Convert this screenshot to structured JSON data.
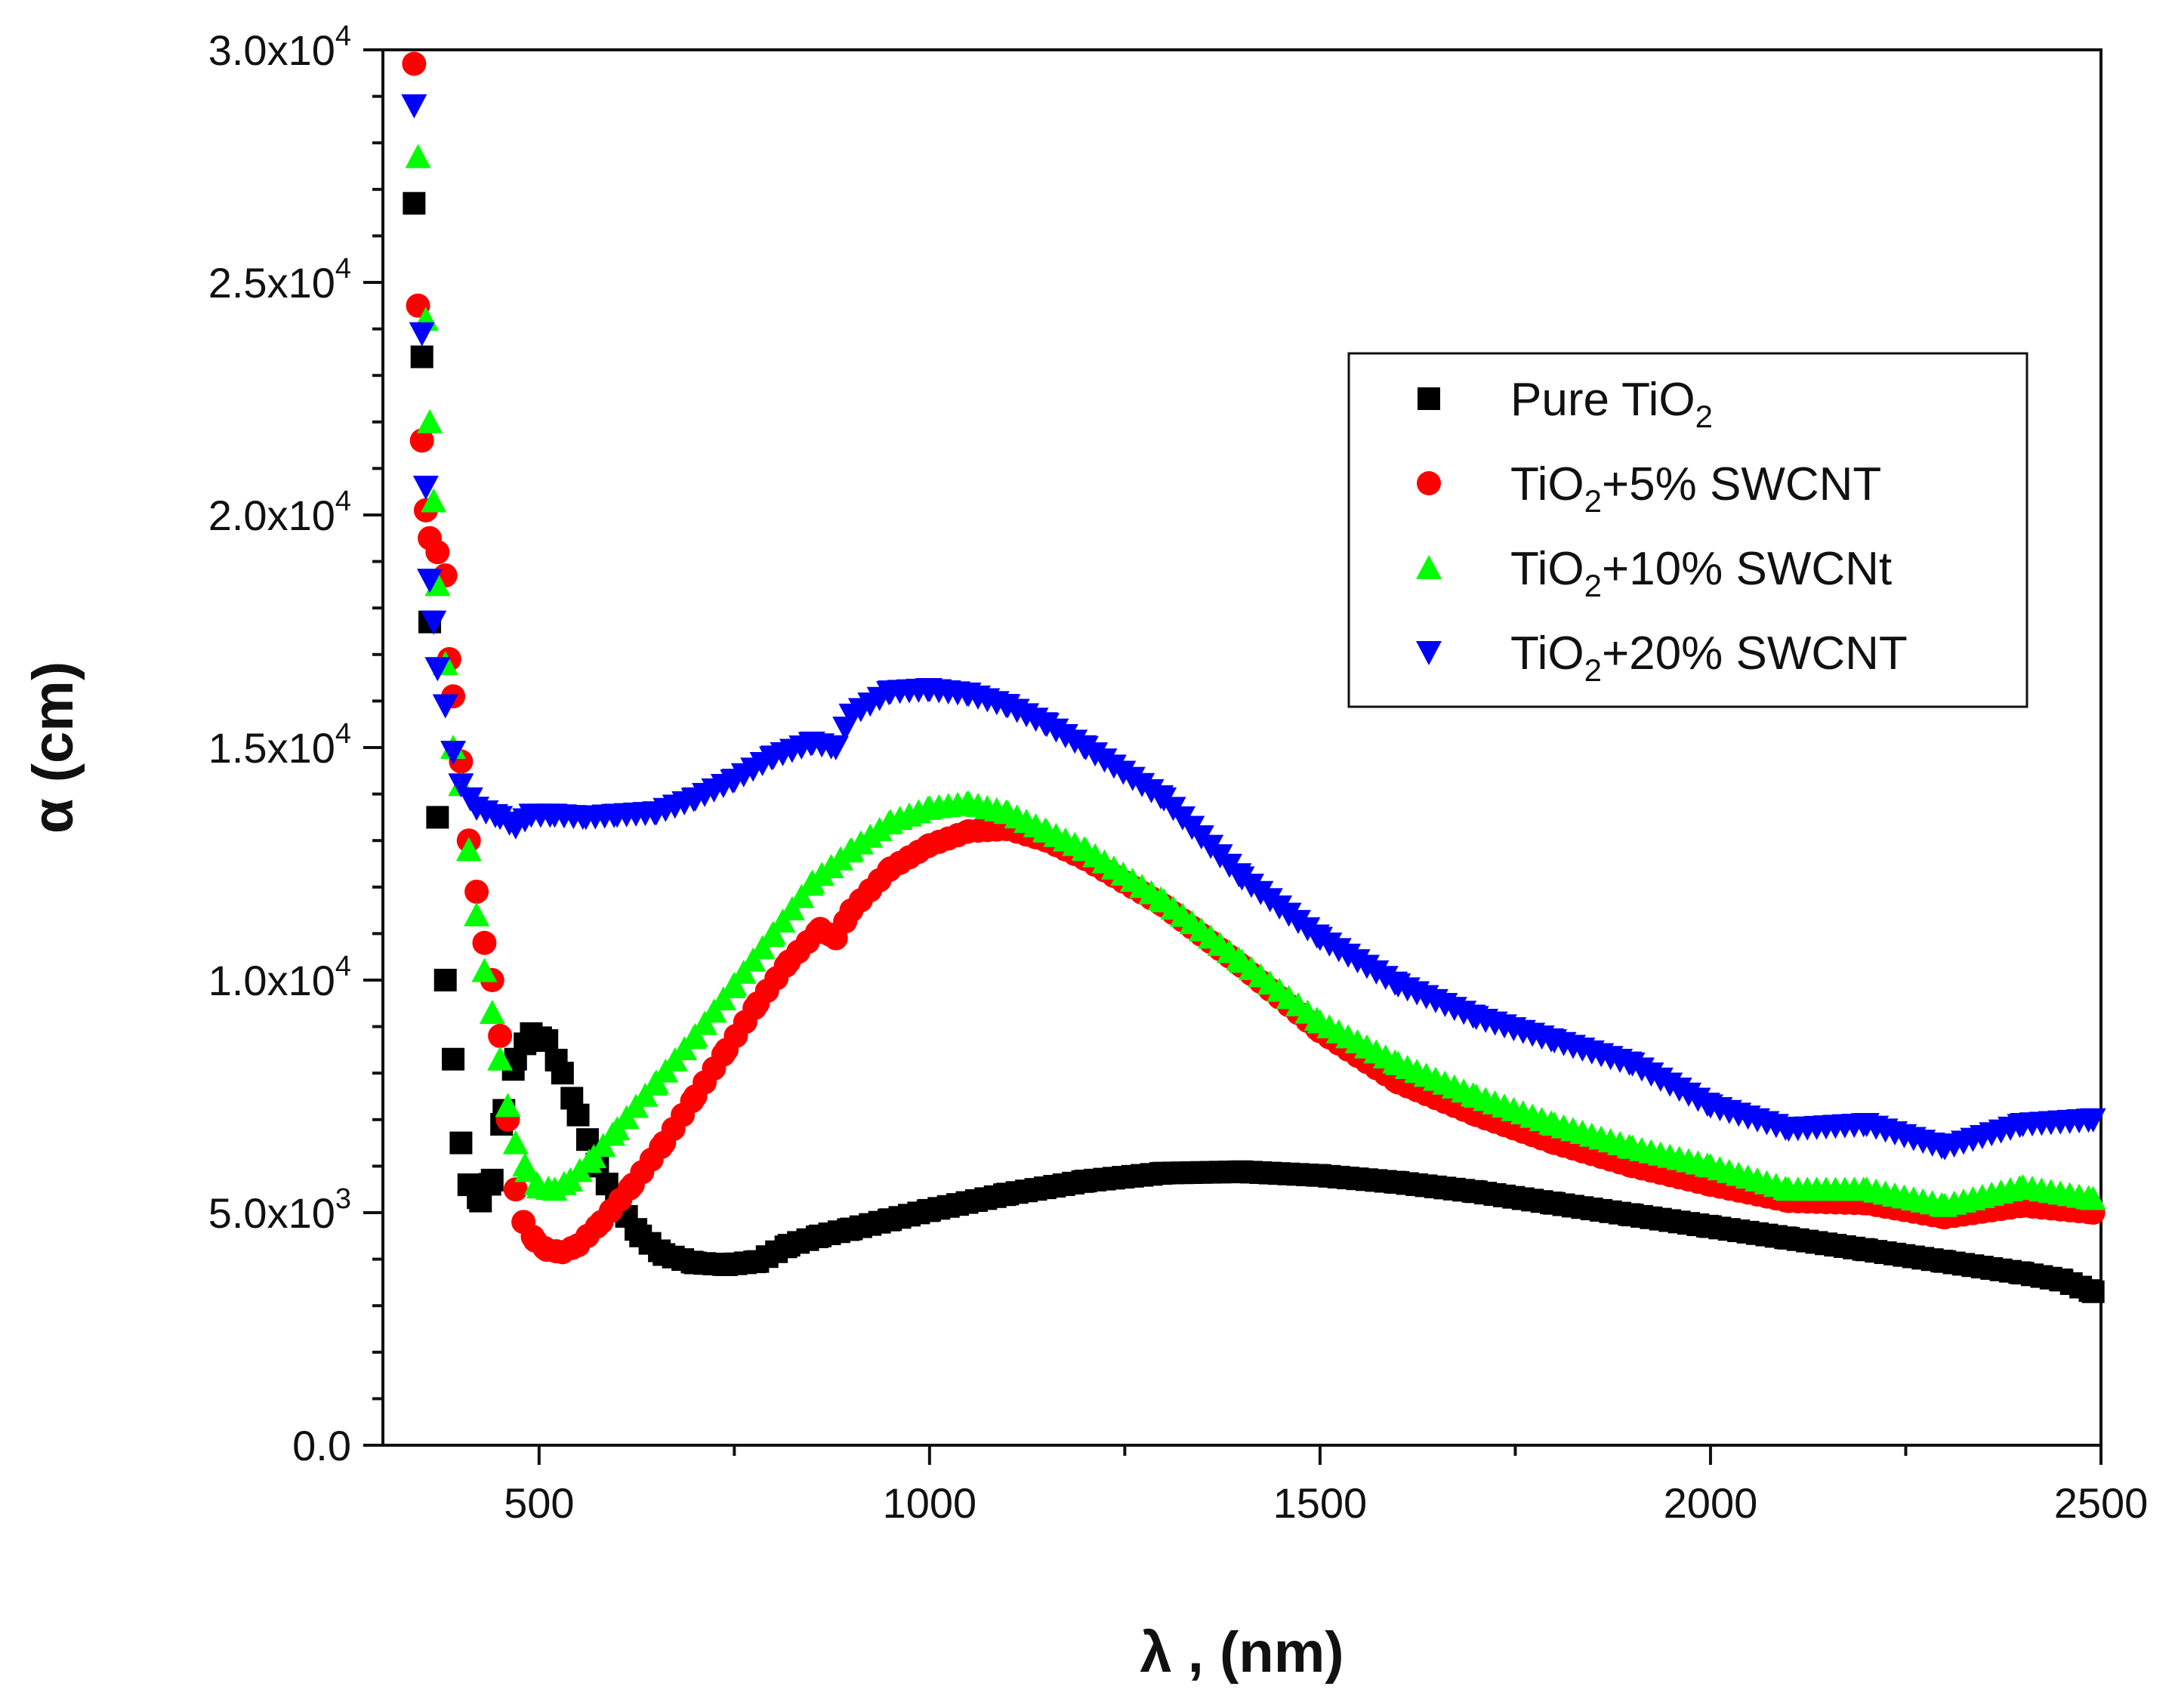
{
  "chart_data": {
    "type": "scatter",
    "title": "",
    "xlabel": "λ  , (nm)",
    "ylabel": "α (cm)",
    "xlim": [
      300,
      2500
    ],
    "ylim": [
      0,
      30000
    ],
    "x_ticks": [
      500,
      1000,
      1500,
      2000,
      2500
    ],
    "x_tick_labels": [
      "500",
      "1000",
      "1500",
      "2000",
      "2500"
    ],
    "y_ticks": [
      0,
      5000,
      10000,
      15000,
      20000,
      25000,
      30000
    ],
    "y_tick_labels": [
      {
        "mantissa": "0.0",
        "exp": ""
      },
      {
        "mantissa": "5.0x10",
        "exp": "3"
      },
      {
        "mantissa": "1.0x10",
        "exp": "4"
      },
      {
        "mantissa": "1.5x10",
        "exp": "4"
      },
      {
        "mantissa": "2.0x10",
        "exp": "4"
      },
      {
        "mantissa": "2.5x10",
        "exp": "4"
      },
      {
        "mantissa": "3.0x10",
        "exp": "4"
      }
    ],
    "legend_position": "top-right",
    "series": [
      {
        "name": "Pure TiO2",
        "legend_label": {
          "pre": "Pure TiO",
          "sub": "2",
          "post": ""
        },
        "marker": "square",
        "color": "#000000",
        "points": [
          [
            340,
            26700
          ],
          [
            350,
            23400
          ],
          [
            360,
            17700
          ],
          [
            370,
            13500
          ],
          [
            380,
            10000
          ],
          [
            390,
            8300
          ],
          [
            400,
            6500
          ],
          [
            410,
            5600
          ],
          [
            425,
            5250
          ],
          [
            440,
            5700
          ],
          [
            455,
            7200
          ],
          [
            470,
            8300
          ],
          [
            490,
            8850
          ],
          [
            510,
            8700
          ],
          [
            530,
            8000
          ],
          [
            550,
            7100
          ],
          [
            575,
            6000
          ],
          [
            600,
            5200
          ],
          [
            630,
            4500
          ],
          [
            660,
            4100
          ],
          [
            700,
            3920
          ],
          [
            740,
            3880
          ],
          [
            780,
            3950
          ],
          [
            820,
            4300
          ],
          [
            860,
            4500
          ],
          [
            900,
            4650
          ],
          [
            950,
            4850
          ],
          [
            1000,
            5050
          ],
          [
            1100,
            5400
          ],
          [
            1200,
            5680
          ],
          [
            1300,
            5850
          ],
          [
            1400,
            5880
          ],
          [
            1500,
            5800
          ],
          [
            1600,
            5650
          ],
          [
            1700,
            5450
          ],
          [
            1800,
            5200
          ],
          [
            1900,
            4950
          ],
          [
            2000,
            4700
          ],
          [
            2100,
            4450
          ],
          [
            2200,
            4200
          ],
          [
            2300,
            3950
          ],
          [
            2400,
            3700
          ],
          [
            2450,
            3550
          ],
          [
            2490,
            3300
          ]
        ]
      },
      {
        "name": "TiO2+5% SWCNT",
        "legend_label": {
          "pre": "TiO",
          "sub": "2",
          "post": "+5% SWCNT"
        },
        "marker": "circle",
        "color": "#ff0000",
        "points": [
          [
            340,
            29700
          ],
          [
            345,
            24500
          ],
          [
            350,
            21600
          ],
          [
            355,
            20100
          ],
          [
            360,
            19500
          ],
          [
            370,
            19200
          ],
          [
            380,
            18700
          ],
          [
            385,
            16900
          ],
          [
            390,
            16100
          ],
          [
            400,
            14700
          ],
          [
            410,
            13000
          ],
          [
            420,
            11900
          ],
          [
            430,
            10800
          ],
          [
            440,
            10000
          ],
          [
            450,
            8800
          ],
          [
            460,
            7000
          ],
          [
            470,
            5500
          ],
          [
            480,
            4800
          ],
          [
            495,
            4400
          ],
          [
            510,
            4200
          ],
          [
            530,
            4150
          ],
          [
            550,
            4300
          ],
          [
            580,
            4800
          ],
          [
            620,
            5600
          ],
          [
            660,
            6500
          ],
          [
            700,
            7500
          ],
          [
            740,
            8500
          ],
          [
            780,
            9500
          ],
          [
            820,
            10400
          ],
          [
            860,
            11100
          ],
          [
            880,
            10900
          ],
          [
            900,
            11500
          ],
          [
            950,
            12400
          ],
          [
            1000,
            12900
          ],
          [
            1050,
            13200
          ],
          [
            1100,
            13250
          ],
          [
            1150,
            13000
          ],
          [
            1200,
            12600
          ],
          [
            1300,
            11600
          ],
          [
            1400,
            10300
          ],
          [
            1500,
            8900
          ],
          [
            1600,
            7800
          ],
          [
            1700,
            7100
          ],
          [
            1800,
            6500
          ],
          [
            1900,
            6000
          ],
          [
            2000,
            5600
          ],
          [
            2100,
            5250
          ],
          [
            2200,
            5200
          ],
          [
            2300,
            4900
          ],
          [
            2400,
            5150
          ],
          [
            2490,
            5000
          ]
        ]
      },
      {
        "name": "TiO2+10% SWCNt",
        "legend_label": {
          "pre": "TiO",
          "sub": "2",
          "post": "+10% SWCNt"
        },
        "marker": "triangle-up",
        "color": "#00ff00",
        "points": [
          [
            345,
            27700
          ],
          [
            355,
            24200
          ],
          [
            360,
            22000
          ],
          [
            365,
            20300
          ],
          [
            370,
            18500
          ],
          [
            380,
            16800
          ],
          [
            390,
            15000
          ],
          [
            400,
            14200
          ],
          [
            410,
            12800
          ],
          [
            420,
            11400
          ],
          [
            430,
            10200
          ],
          [
            440,
            9300
          ],
          [
            450,
            8300
          ],
          [
            460,
            7300
          ],
          [
            470,
            6500
          ],
          [
            485,
            5900
          ],
          [
            500,
            5550
          ],
          [
            520,
            5500
          ],
          [
            540,
            5700
          ],
          [
            570,
            6200
          ],
          [
            600,
            6800
          ],
          [
            650,
            7800
          ],
          [
            700,
            8800
          ],
          [
            750,
            9900
          ],
          [
            800,
            11000
          ],
          [
            850,
            12100
          ],
          [
            900,
            12800
          ],
          [
            950,
            13400
          ],
          [
            1000,
            13700
          ],
          [
            1050,
            13800
          ],
          [
            1100,
            13600
          ],
          [
            1150,
            13200
          ],
          [
            1200,
            12800
          ],
          [
            1300,
            11700
          ],
          [
            1400,
            10400
          ],
          [
            1500,
            9100
          ],
          [
            1600,
            8200
          ],
          [
            1700,
            7500
          ],
          [
            1800,
            6900
          ],
          [
            1900,
            6400
          ],
          [
            2000,
            6000
          ],
          [
            2100,
            5500
          ],
          [
            2200,
            5500
          ],
          [
            2300,
            5150
          ],
          [
            2400,
            5550
          ],
          [
            2490,
            5300
          ]
        ]
      },
      {
        "name": "TiO2+20% SWCNT",
        "legend_label": {
          "pre": "TiO",
          "sub": "2",
          "post": "+20% SWCNT"
        },
        "marker": "triangle-down",
        "color": "#0000ff",
        "points": [
          [
            340,
            28800
          ],
          [
            350,
            23900
          ],
          [
            355,
            20600
          ],
          [
            360,
            18600
          ],
          [
            365,
            17700
          ],
          [
            370,
            16700
          ],
          [
            380,
            15900
          ],
          [
            390,
            14900
          ],
          [
            400,
            14200
          ],
          [
            420,
            13700
          ],
          [
            450,
            13500
          ],
          [
            470,
            13300
          ],
          [
            490,
            13550
          ],
          [
            520,
            13550
          ],
          [
            560,
            13500
          ],
          [
            600,
            13550
          ],
          [
            650,
            13600
          ],
          [
            700,
            13900
          ],
          [
            750,
            14300
          ],
          [
            800,
            14800
          ],
          [
            850,
            15100
          ],
          [
            880,
            15000
          ],
          [
            900,
            15700
          ],
          [
            950,
            16200
          ],
          [
            1000,
            16250
          ],
          [
            1050,
            16150
          ],
          [
            1100,
            15900
          ],
          [
            1150,
            15500
          ],
          [
            1200,
            15000
          ],
          [
            1300,
            13900
          ],
          [
            1400,
            12200
          ],
          [
            1500,
            10900
          ],
          [
            1600,
            9900
          ],
          [
            1700,
            9200
          ],
          [
            1800,
            8700
          ],
          [
            1900,
            8200
          ],
          [
            2000,
            7300
          ],
          [
            2100,
            6800
          ],
          [
            2200,
            6900
          ],
          [
            2300,
            6400
          ],
          [
            2400,
            6900
          ],
          [
            2490,
            7000
          ]
        ]
      }
    ]
  }
}
